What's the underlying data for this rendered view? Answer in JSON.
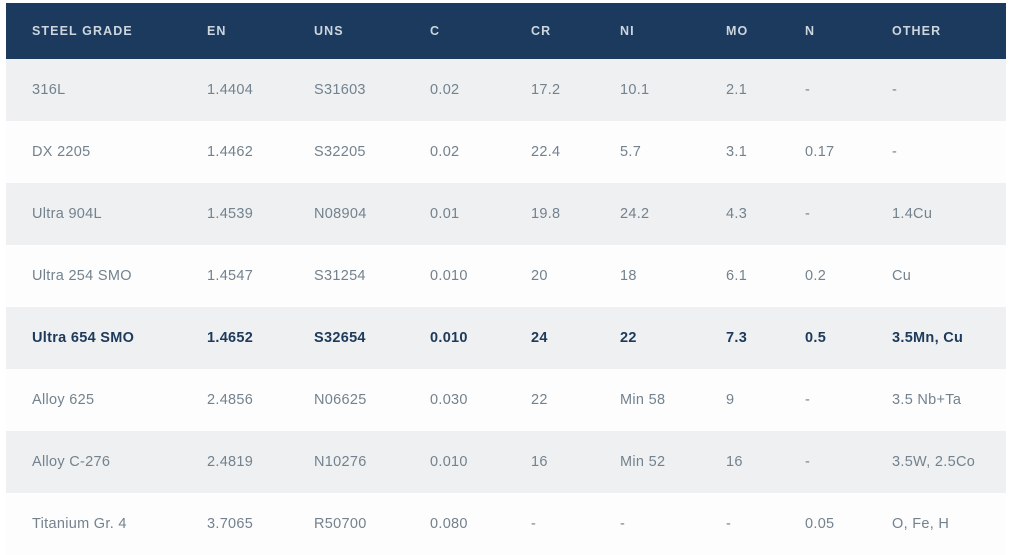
{
  "table": {
    "columns": [
      {
        "key": "grade",
        "label": "STEEL GRADE"
      },
      {
        "key": "en",
        "label": "EN"
      },
      {
        "key": "uns",
        "label": "UNS"
      },
      {
        "key": "c",
        "label": "C"
      },
      {
        "key": "cr",
        "label": "CR"
      },
      {
        "key": "ni",
        "label": "NI"
      },
      {
        "key": "mo",
        "label": "MO"
      },
      {
        "key": "n",
        "label": "N"
      },
      {
        "key": "other",
        "label": "OTHER"
      }
    ],
    "rows": [
      {
        "grade": "316L",
        "en": "1.4404",
        "uns": "S31603",
        "c": "0.02",
        "cr": "17.2",
        "ni": "10.1",
        "mo": "2.1",
        "n": "-",
        "other": "-",
        "highlight": false
      },
      {
        "grade": "DX 2205",
        "en": "1.4462",
        "uns": "S32205",
        "c": "0.02",
        "cr": "22.4",
        "ni": "5.7",
        "mo": "3.1",
        "n": "0.17",
        "other": "-",
        "highlight": false
      },
      {
        "grade": "Ultra 904L",
        "en": "1.4539",
        "uns": "N08904",
        "c": "0.01",
        "cr": "19.8",
        "ni": "24.2",
        "mo": "4.3",
        "n": "-",
        "other": "1.4Cu",
        "highlight": false
      },
      {
        "grade": "Ultra 254 SMO",
        "en": "1.4547",
        "uns": "S31254",
        "c": "0.010",
        "cr": "20",
        "ni": "18",
        "mo": "6.1",
        "n": "0.2",
        "other": "Cu",
        "highlight": false
      },
      {
        "grade": "Ultra 654 SMO",
        "en": "1.4652",
        "uns": "S32654",
        "c": "0.010",
        "cr": "24",
        "ni": "22",
        "mo": "7.3",
        "n": "0.5",
        "other": "3.5Mn, Cu",
        "highlight": true
      },
      {
        "grade": "Alloy 625",
        "en": "2.4856",
        "uns": "N06625",
        "c": "0.030",
        "cr": "22",
        "ni": "Min 58",
        "mo": "9",
        "n": "-",
        "other": "3.5 Nb+Ta",
        "highlight": false
      },
      {
        "grade": "Alloy C-276",
        "en": "2.4819",
        "uns": "N10276",
        "c": "0.010",
        "cr": "16",
        "ni": "Min 52",
        "mo": "16",
        "n": "-",
        "other": "3.5W, 2.5Co",
        "highlight": false
      },
      {
        "grade": "Titanium Gr. 4",
        "en": "3.7065",
        "uns": "R50700",
        "c": "0.080",
        "cr": "-",
        "ni": "-",
        "mo": "-",
        "n": "0.05",
        "other": "O, Fe, H",
        "highlight": false
      }
    ],
    "colors": {
      "header_bg": "#1b3a5e",
      "header_text": "#cdd6de",
      "row_alt_bg": "#eef0f1",
      "row_bg": "#fdfdfd",
      "cell_text": "#73828e",
      "highlight_text": "#1d3a5a"
    }
  }
}
